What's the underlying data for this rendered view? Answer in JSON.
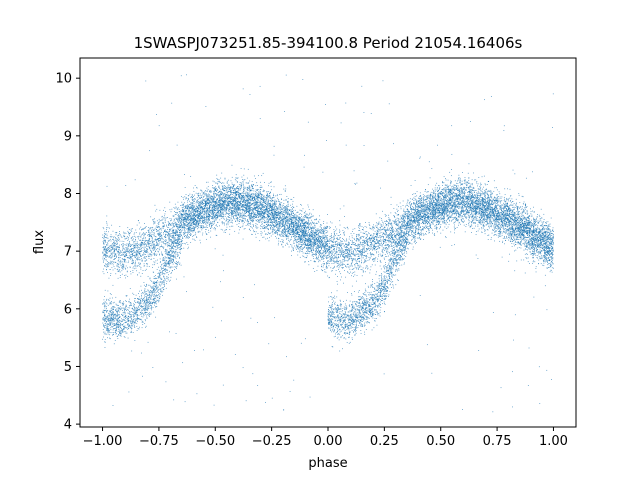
{
  "chart_data": {
    "type": "scatter",
    "title": "1SWASPJ073251.85-394100.8 Period 21054.16406s",
    "xlabel": "phase",
    "ylabel": "flux",
    "xlim": [
      -1.1,
      1.1
    ],
    "ylim": [
      3.95,
      10.35
    ],
    "xticks": [
      -1.0,
      -0.75,
      -0.5,
      -0.25,
      0.0,
      0.25,
      0.5,
      0.75,
      1.0
    ],
    "xtick_labels": [
      "−1.00",
      "−0.75",
      "−0.50",
      "−0.25",
      "0.00",
      "0.25",
      "0.50",
      "0.75",
      "1.00"
    ],
    "yticks": [
      4,
      5,
      6,
      7,
      8,
      9,
      10
    ],
    "ytick_labels": [
      "4",
      "5",
      "6",
      "7",
      "8",
      "9",
      "10"
    ],
    "grid": false,
    "legend": "none",
    "marker_color": "#1f77b4",
    "light_curve": {
      "phase_fold": "data repeats with period 1 in phase",
      "upper_branch_profile": [
        [
          0.0,
          7.05
        ],
        [
          0.1,
          6.95
        ],
        [
          0.2,
          7.1
        ],
        [
          0.3,
          7.35
        ],
        [
          0.4,
          7.6
        ],
        [
          0.5,
          7.8
        ],
        [
          0.6,
          7.85
        ],
        [
          0.7,
          7.75
        ],
        [
          0.8,
          7.55
        ],
        [
          0.9,
          7.3
        ],
        [
          1.0,
          7.05
        ]
      ],
      "lower_branch_profile": [
        [
          0.0,
          5.85
        ],
        [
          0.1,
          5.8
        ],
        [
          0.2,
          6.1
        ],
        [
          0.25,
          6.4
        ],
        [
          0.3,
          6.9
        ],
        [
          0.35,
          7.2
        ]
      ],
      "approx_points": 17000
    }
  }
}
